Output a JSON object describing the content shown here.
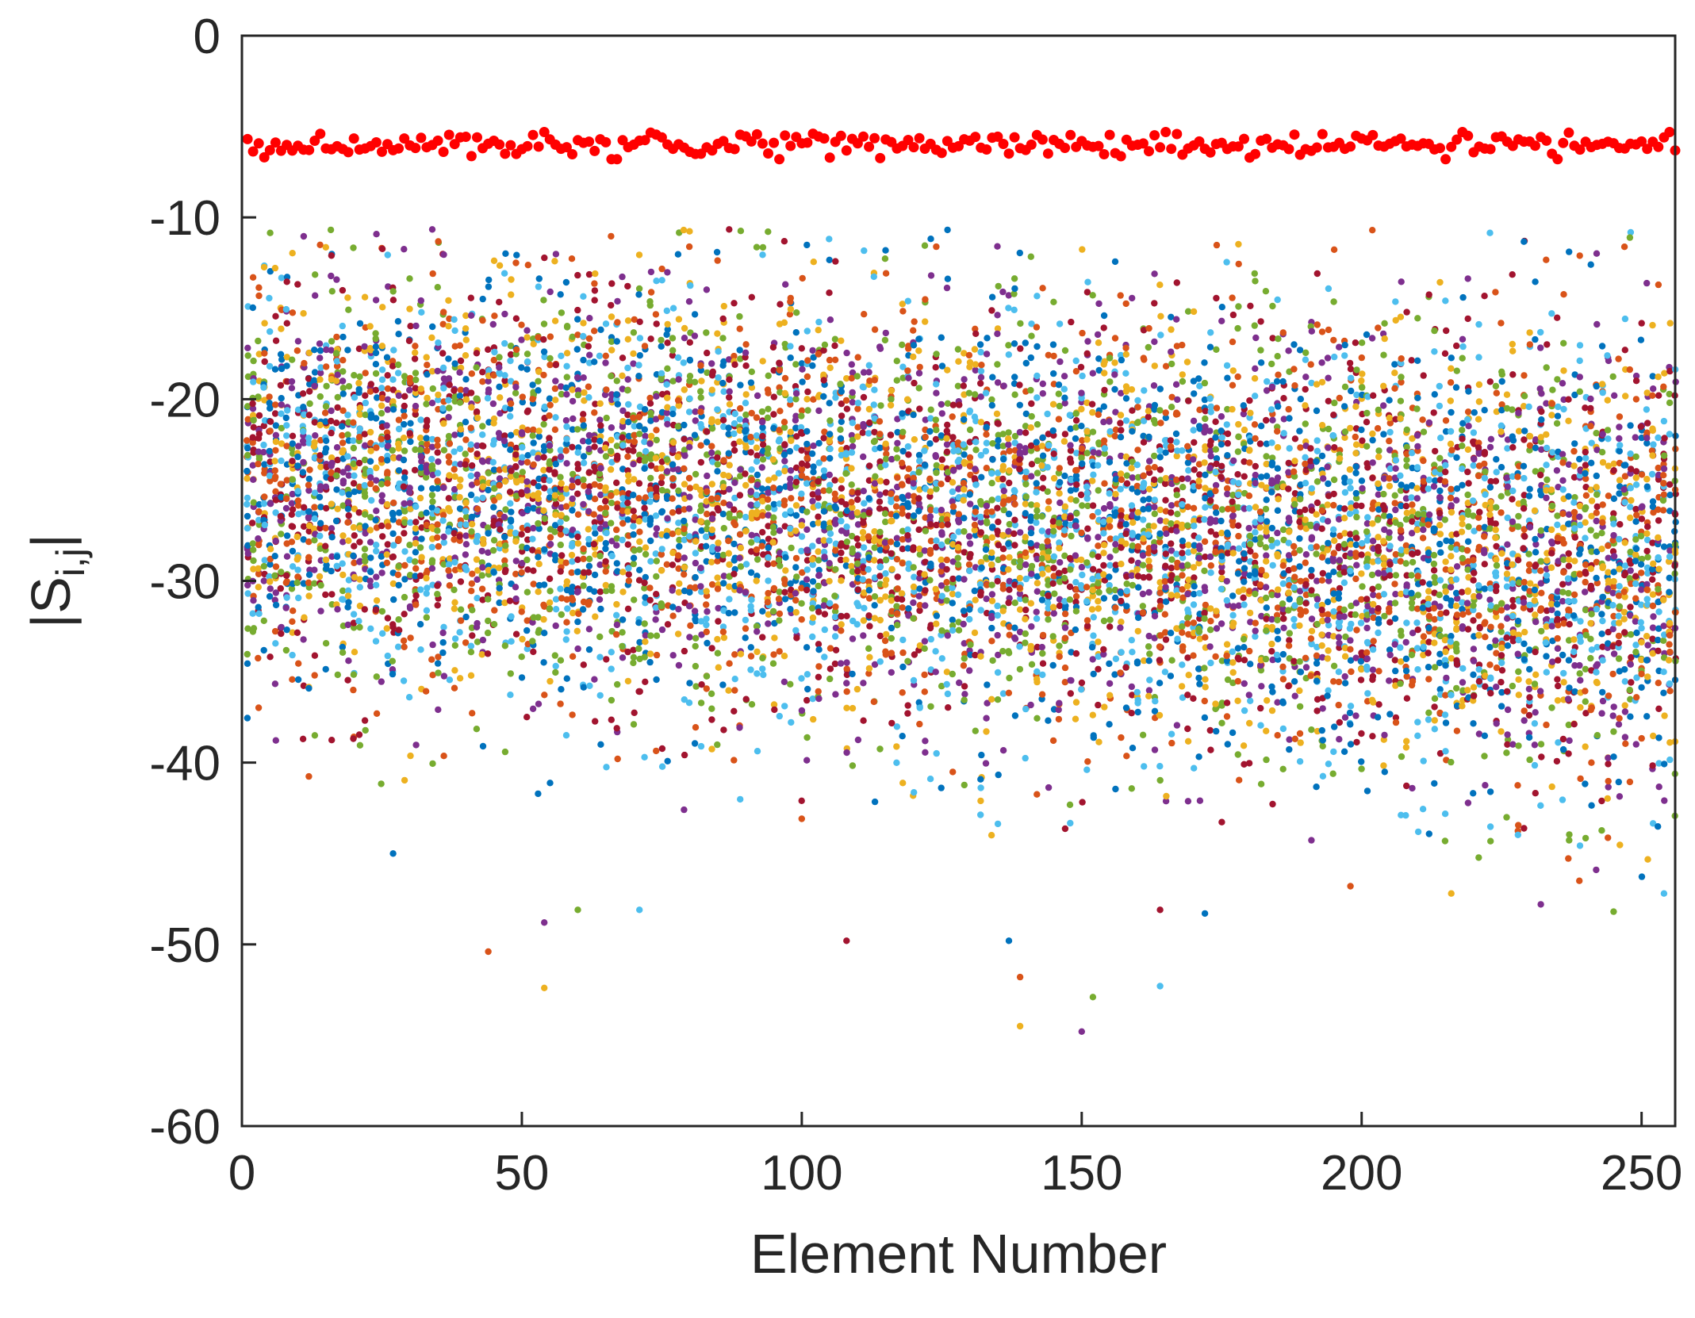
{
  "chart_data": {
    "type": "scatter",
    "title": "",
    "xlabel": "Element Number",
    "ylabel": {
      "main": "|S",
      "subscript": "i,j",
      "close": "|"
    },
    "xlim": [
      0,
      256
    ],
    "ylim": [
      -60,
      0
    ],
    "xticks": [
      0,
      50,
      100,
      150,
      200,
      250
    ],
    "yticks": [
      0,
      -10,
      -20,
      -30,
      -40,
      -50,
      -60
    ],
    "xtick_labels": [
      "0",
      "50",
      "100",
      "150",
      "200",
      "250"
    ],
    "ytick_labels": [
      "0",
      "-10",
      "-20",
      "-30",
      "-40",
      "-50",
      "-60"
    ],
    "grid": false,
    "legend": "none",
    "series": [
      {
        "role": "reflection",
        "color": "#ff0000",
        "x_range": [
          1,
          256
        ],
        "y_mean": -6,
        "y_spread": 0.35,
        "y_extremes": {
          "min": -6.8,
          "max": -5.3
        }
      },
      {
        "role": "coupling",
        "colors": [
          "#0072bd",
          "#d95319",
          "#edb120",
          "#7e2f8e",
          "#77ac30",
          "#4dbeee",
          "#a2142f"
        ],
        "x_range": [
          1,
          256
        ],
        "band_start": {
          "x": 1,
          "upper": -13,
          "center": -24,
          "lower": -36
        },
        "band_end": {
          "x": 256,
          "upper": -16,
          "center": -29,
          "lower": -42
        },
        "max_value": -10.6,
        "outliers": [
          {
            "x": 27,
            "y": -45
          },
          {
            "x": 44,
            "y": -50.4
          },
          {
            "x": 54,
            "y": -52.4
          },
          {
            "x": 54,
            "y": -48.8
          },
          {
            "x": 60,
            "y": -48.1
          },
          {
            "x": 71,
            "y": -48.1
          },
          {
            "x": 108,
            "y": -49.8
          },
          {
            "x": 137,
            "y": -49.8
          },
          {
            "x": 139,
            "y": -51.8
          },
          {
            "x": 139,
            "y": -54.5
          },
          {
            "x": 150,
            "y": -54.8
          },
          {
            "x": 152,
            "y": -52.9
          },
          {
            "x": 164,
            "y": -52.3
          },
          {
            "x": 164,
            "y": -48.1
          },
          {
            "x": 172,
            "y": -48.3
          },
          {
            "x": 198,
            "y": -46.8
          },
          {
            "x": 216,
            "y": -47.2
          },
          {
            "x": 232,
            "y": -47.8
          },
          {
            "x": 245,
            "y": -48.2
          },
          {
            "x": 254,
            "y": -47.2
          }
        ]
      }
    ]
  }
}
